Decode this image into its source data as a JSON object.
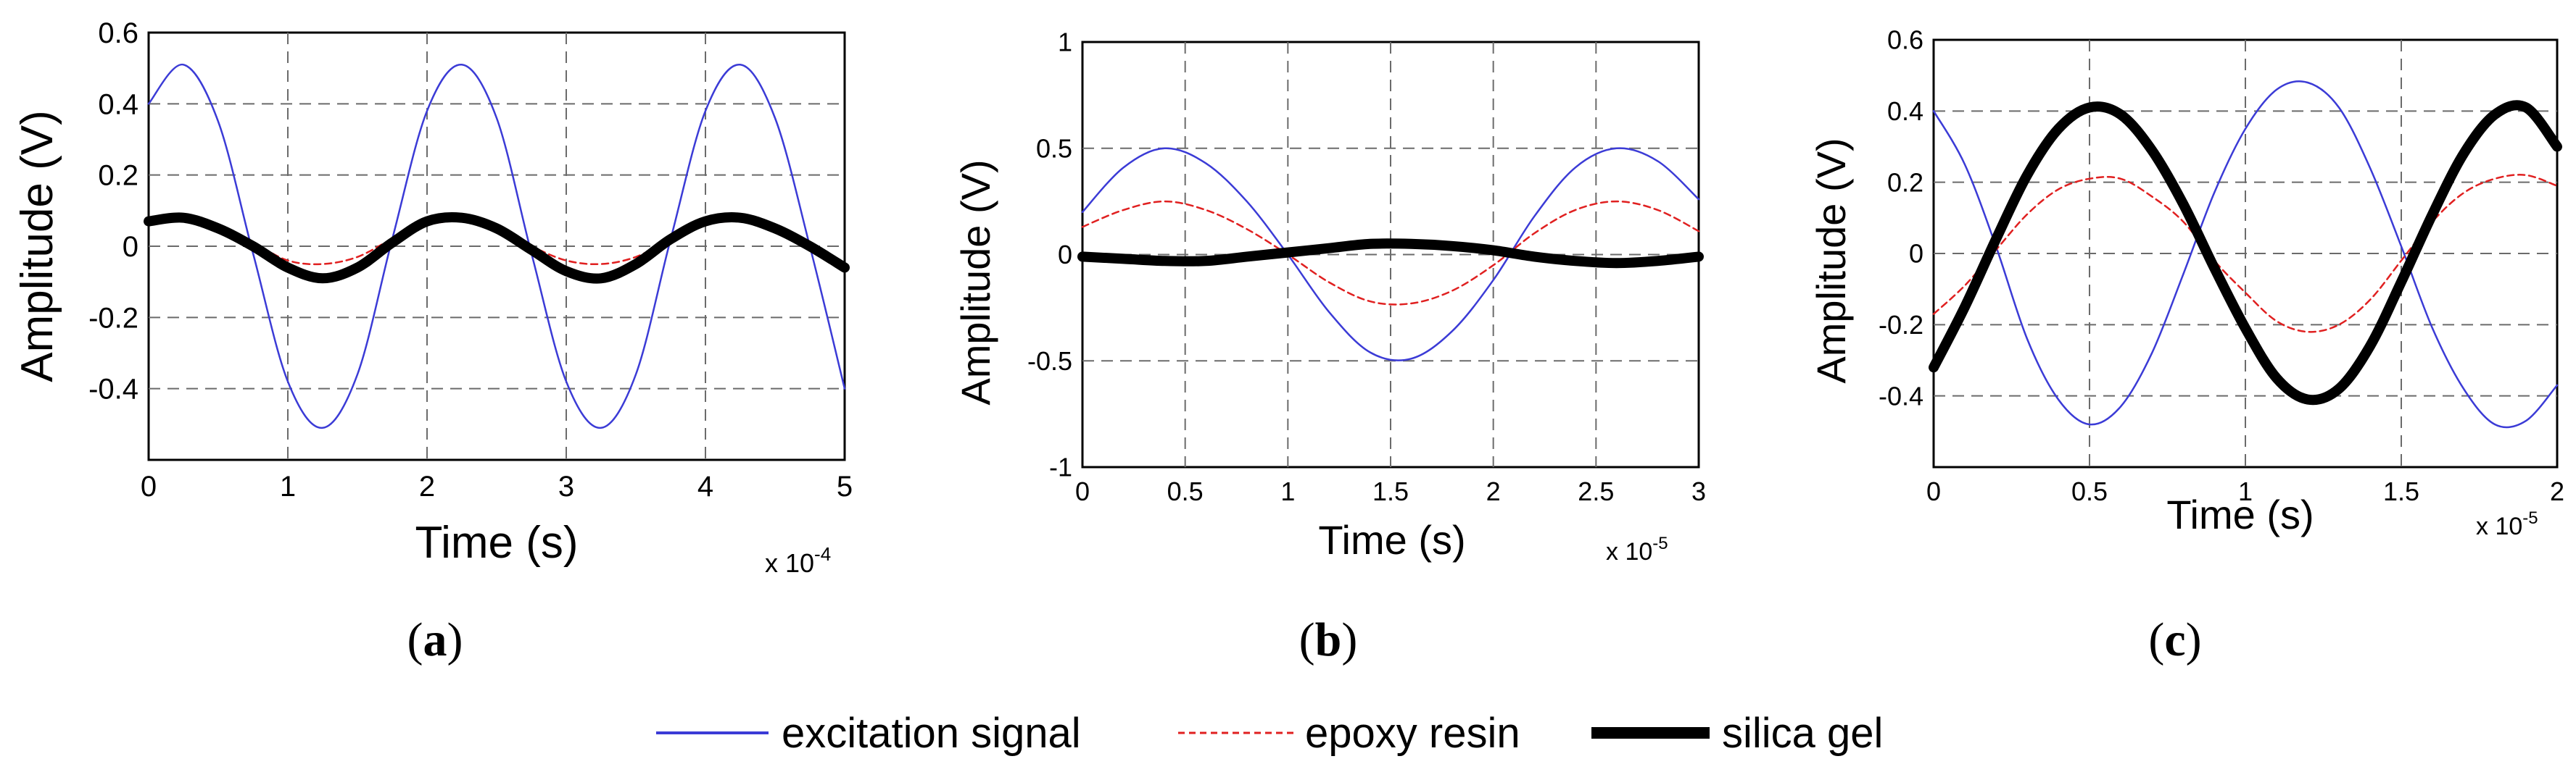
{
  "colors": {
    "excitation": "#3b3bd6",
    "epoxy": "#e02020",
    "silica": "#000000",
    "grid": "#6b6b6b",
    "axis": "#000000"
  },
  "legend": {
    "excitation_label": "excitation signal",
    "epoxy_label": "epoxy resin",
    "silica_label": "silica gel"
  },
  "chart_data": [
    {
      "type": "line",
      "panel_label": "(a)",
      "panel_letter": "a",
      "xlabel": "Time (s)",
      "ylabel": "Amplitude (V)",
      "x_multiplier": "x 10",
      "x_exponent": "-4",
      "xlim": [
        0,
        5
      ],
      "ylim": [
        -0.6,
        0.6
      ],
      "xticks": [
        0,
        1,
        2,
        3,
        4,
        5
      ],
      "xtick_labels": [
        "0",
        "1",
        "2",
        "3",
        "4",
        "5"
      ],
      "yticks": [
        -0.4,
        -0.2,
        0,
        0.2,
        0.4,
        0.6
      ],
      "ytick_labels": [
        "-0.4",
        "-0.2",
        "0",
        "0.2",
        "0.4",
        "0.6"
      ],
      "grid": true,
      "series": [
        {
          "name": "excitation signal",
          "x": [
            0,
            0.25,
            0.5,
            0.75,
            1,
            1.25,
            1.5,
            1.75,
            2,
            2.25,
            2.5,
            2.75,
            3,
            3.25,
            3.5,
            3.75,
            4,
            4.25,
            4.5,
            4.75,
            5
          ],
          "y": [
            0.4,
            0.51,
            0.35,
            -0.02,
            -0.38,
            -0.51,
            -0.36,
            0.02,
            0.38,
            0.51,
            0.36,
            -0.02,
            -0.38,
            -0.51,
            -0.36,
            0.02,
            0.38,
            0.51,
            0.36,
            0.0,
            -0.4
          ]
        },
        {
          "name": "epoxy resin",
          "x": [
            0,
            0.25,
            0.5,
            0.75,
            1,
            1.25,
            1.5,
            1.75,
            2,
            2.25,
            2.5,
            2.75,
            3,
            3.25,
            3.5,
            3.75,
            4,
            4.25,
            4.5,
            4.75,
            5
          ],
          "y": [
            0.06,
            0.07,
            0.05,
            0.01,
            -0.04,
            -0.05,
            -0.03,
            0.02,
            0.06,
            0.07,
            0.05,
            0.0,
            -0.04,
            -0.05,
            -0.03,
            0.02,
            0.06,
            0.07,
            0.05,
            0.0,
            -0.05
          ]
        },
        {
          "name": "silica gel",
          "x": [
            0,
            0.25,
            0.5,
            0.75,
            1,
            1.25,
            1.5,
            1.75,
            2,
            2.25,
            2.5,
            2.75,
            3,
            3.25,
            3.5,
            3.75,
            4,
            4.25,
            4.5,
            4.75,
            5
          ],
          "y": [
            0.07,
            0.08,
            0.05,
            0.0,
            -0.06,
            -0.09,
            -0.06,
            0.01,
            0.07,
            0.08,
            0.05,
            -0.01,
            -0.07,
            -0.09,
            -0.05,
            0.02,
            0.07,
            0.08,
            0.05,
            0.0,
            -0.06
          ]
        }
      ]
    },
    {
      "type": "line",
      "panel_label": "(b)",
      "panel_letter": "b",
      "xlabel": "Time (s)",
      "ylabel": "Amplitude (V)",
      "x_multiplier": "x 10",
      "x_exponent": "-5",
      "xlim": [
        0,
        3
      ],
      "ylim": [
        -1,
        1
      ],
      "xticks": [
        0,
        0.5,
        1,
        1.5,
        2,
        2.5,
        3
      ],
      "xtick_labels": [
        "0",
        "0.5",
        "1",
        "1.5",
        "2",
        "2.5",
        "3"
      ],
      "yticks": [
        -1,
        -0.5,
        0,
        0.5,
        1
      ],
      "ytick_labels": [
        "-1",
        "-0.5",
        "0",
        "0.5",
        "1"
      ],
      "grid": true,
      "series": [
        {
          "name": "excitation signal",
          "x": [
            0,
            0.2,
            0.4,
            0.6,
            0.8,
            1.0,
            1.2,
            1.4,
            1.6,
            1.8,
            2.0,
            2.2,
            2.4,
            2.6,
            2.8,
            3.0
          ],
          "y": [
            0.2,
            0.41,
            0.5,
            0.43,
            0.25,
            0.0,
            -0.27,
            -0.46,
            -0.49,
            -0.36,
            -0.12,
            0.18,
            0.41,
            0.5,
            0.44,
            0.26
          ]
        },
        {
          "name": "epoxy resin",
          "x": [
            0,
            0.2,
            0.4,
            0.6,
            0.8,
            1.0,
            1.2,
            1.4,
            1.6,
            1.8,
            2.0,
            2.2,
            2.4,
            2.6,
            2.8,
            3.0
          ],
          "y": [
            0.13,
            0.21,
            0.25,
            0.21,
            0.12,
            0.0,
            -0.13,
            -0.22,
            -0.23,
            -0.17,
            -0.05,
            0.1,
            0.21,
            0.25,
            0.21,
            0.11
          ]
        },
        {
          "name": "silica gel",
          "x": [
            0,
            0.2,
            0.4,
            0.6,
            0.8,
            1.0,
            1.2,
            1.4,
            1.6,
            1.8,
            2.0,
            2.2,
            2.4,
            2.6,
            2.8,
            3.0
          ],
          "y": [
            -0.01,
            -0.02,
            -0.03,
            -0.03,
            -0.01,
            0.01,
            0.03,
            0.05,
            0.05,
            0.04,
            0.02,
            -0.01,
            -0.03,
            -0.04,
            -0.03,
            -0.01
          ]
        }
      ]
    },
    {
      "type": "line",
      "panel_label": "(c)",
      "panel_letter": "c",
      "xlabel": "Time (s)",
      "ylabel": "Amplitude (V)",
      "x_multiplier": "x 10",
      "x_exponent": "-5",
      "xlim": [
        0,
        2
      ],
      "ylim": [
        -0.6,
        0.6
      ],
      "xticks": [
        0,
        0.5,
        1,
        1.5,
        2
      ],
      "xtick_labels": [
        "0",
        "0.5",
        "1",
        "1.5",
        "2"
      ],
      "yticks": [
        -0.4,
        -0.2,
        0,
        0.2,
        0.4,
        0.6
      ],
      "ytick_labels": [
        "-0.4",
        "-0.2",
        "0",
        "0.2",
        "0.4",
        "0.6"
      ],
      "grid": true,
      "series": [
        {
          "name": "excitation signal",
          "x": [
            0,
            0.1,
            0.2,
            0.3,
            0.4,
            0.5,
            0.6,
            0.7,
            0.8,
            0.9,
            1.0,
            1.1,
            1.2,
            1.3,
            1.4,
            1.5,
            1.6,
            1.7,
            1.8,
            1.9,
            2.0
          ],
          "y": [
            0.4,
            0.25,
            0.02,
            -0.24,
            -0.41,
            -0.48,
            -0.43,
            -0.28,
            -0.06,
            0.17,
            0.35,
            0.46,
            0.48,
            0.41,
            0.24,
            0.02,
            -0.21,
            -0.38,
            -0.48,
            -0.47,
            -0.37
          ]
        },
        {
          "name": "epoxy resin",
          "x": [
            0,
            0.1,
            0.2,
            0.3,
            0.4,
            0.5,
            0.6,
            0.7,
            0.8,
            0.9,
            1.0,
            1.1,
            1.2,
            1.3,
            1.4,
            1.5,
            1.6,
            1.7,
            1.8,
            1.9,
            2.0
          ],
          "y": [
            -0.17,
            -0.09,
            0.01,
            0.11,
            0.18,
            0.21,
            0.21,
            0.16,
            0.09,
            -0.02,
            -0.11,
            -0.19,
            -0.22,
            -0.2,
            -0.13,
            -0.02,
            0.09,
            0.17,
            0.21,
            0.22,
            0.19
          ]
        },
        {
          "name": "silica gel",
          "x": [
            0,
            0.1,
            0.2,
            0.3,
            0.4,
            0.5,
            0.6,
            0.7,
            0.8,
            0.9,
            1.0,
            1.1,
            1.2,
            1.3,
            1.4,
            1.5,
            1.6,
            1.7,
            1.8,
            1.9,
            2.0
          ],
          "y": [
            -0.32,
            -0.15,
            0.04,
            0.22,
            0.35,
            0.41,
            0.39,
            0.29,
            0.14,
            -0.04,
            -0.21,
            -0.35,
            -0.41,
            -0.38,
            -0.26,
            -0.08,
            0.11,
            0.28,
            0.39,
            0.41,
            0.3
          ]
        }
      ]
    }
  ]
}
